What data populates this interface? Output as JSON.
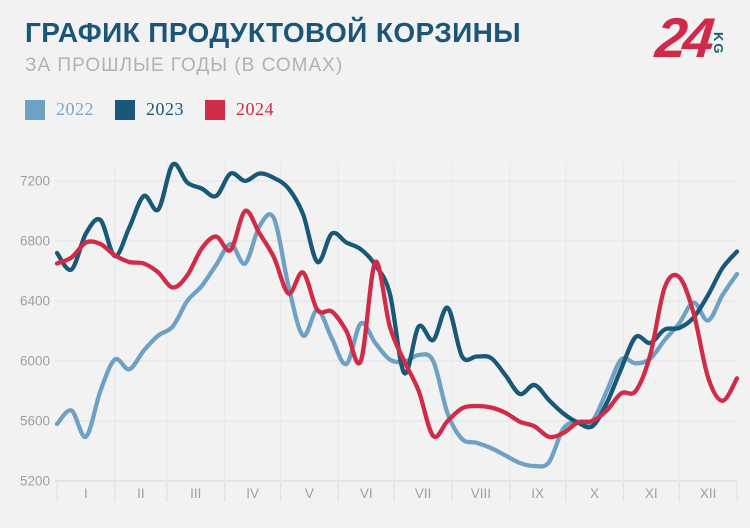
{
  "header": {
    "title": "ГРАФИК ПРОДУКТОВОЙ КОРЗИНЫ",
    "subtitle": "ЗА ПРОШЛЫЕ ГОДЫ (В СОМАХ)"
  },
  "logo": {
    "number": "24",
    "suffix": "KG",
    "number_color": "#d0294a",
    "suffix_color": "#1b5675"
  },
  "legend": [
    {
      "label": "2022",
      "color": "#6fa1c4",
      "label_color": "#7fa8c8"
    },
    {
      "label": "2023",
      "color": "#1a5878",
      "label_color": "#1a5878"
    },
    {
      "label": "2024",
      "color": "#d02b47",
      "label_color": "#d02b47"
    }
  ],
  "colors": {
    "background": "#f2f2f2",
    "title": "#1b5679",
    "subtitle": "#b1b2b4",
    "axis_label": "#9da0a3",
    "gridline": "#e5e5e6",
    "baseline": "#dbdbdd",
    "vertical_gridline": "#eaeaeb",
    "tick": "#e2e2e3"
  },
  "chart_data": {
    "type": "line",
    "title": "ГРАФИК ПРОДУКТОВОЙ КОРЗИНЫ",
    "subtitle": "ЗА ПРОШЛЫЕ ГОДЫ (В СОМАХ)",
    "unit": "сом",
    "grid": true,
    "legend_position": "top-left",
    "sampling": "48 evenly spaced samples per year (approx. weekly), read from the plotted curves",
    "x_axis": {
      "labels": [
        "I",
        "II",
        "III",
        "IV",
        "V",
        "VI",
        "VII",
        "VIII",
        "IX",
        "X",
        "XI",
        "XII"
      ],
      "month_days": [
        31,
        28,
        31,
        30,
        31,
        30,
        31,
        31,
        30,
        31,
        30,
        31
      ]
    },
    "y_axis": {
      "min": 5200,
      "max": 7200,
      "step": 400,
      "ticks": [
        7200,
        6800,
        6400,
        6000,
        5600,
        5200
      ]
    },
    "series": [
      {
        "name": "2022",
        "color": "#6fa1c4",
        "values": [
          5580,
          5670,
          5495,
          5800,
          6010,
          5945,
          6070,
          6170,
          6230,
          6400,
          6500,
          6640,
          6780,
          6650,
          6900,
          6950,
          6500,
          6170,
          6340,
          6150,
          5980,
          6250,
          6120,
          6010,
          5995,
          6040,
          6000,
          5650,
          5480,
          5455,
          5420,
          5370,
          5320,
          5300,
          5325,
          5550,
          5595,
          5600,
          5800,
          6010,
          5985,
          6015,
          6140,
          6250,
          6390,
          6270,
          6440,
          6580
        ]
      },
      {
        "name": "2023",
        "color": "#1a5878",
        "values": [
          6720,
          6610,
          6850,
          6940,
          6700,
          6890,
          7100,
          7010,
          7310,
          7190,
          7150,
          7100,
          7250,
          7200,
          7250,
          7220,
          7150,
          6980,
          6660,
          6850,
          6790,
          6745,
          6640,
          6450,
          5920,
          6230,
          6140,
          6355,
          6030,
          6030,
          6020,
          5905,
          5780,
          5840,
          5740,
          5650,
          5590,
          5565,
          5720,
          5950,
          6160,
          6120,
          6210,
          6220,
          6290,
          6440,
          6620,
          6730
        ]
      },
      {
        "name": "2024",
        "color": "#d02b47",
        "values": [
          6650,
          6690,
          6790,
          6780,
          6705,
          6660,
          6650,
          6590,
          6490,
          6570,
          6750,
          6830,
          6740,
          7000,
          6850,
          6690,
          6450,
          6590,
          6340,
          6330,
          6200,
          6000,
          6660,
          6230,
          6000,
          5800,
          5500,
          5600,
          5685,
          5700,
          5690,
          5655,
          5595,
          5565,
          5495,
          5520,
          5590,
          5600,
          5670,
          5785,
          5800,
          6040,
          6490,
          6560,
          6320,
          5890,
          5735,
          5885
        ]
      }
    ]
  }
}
